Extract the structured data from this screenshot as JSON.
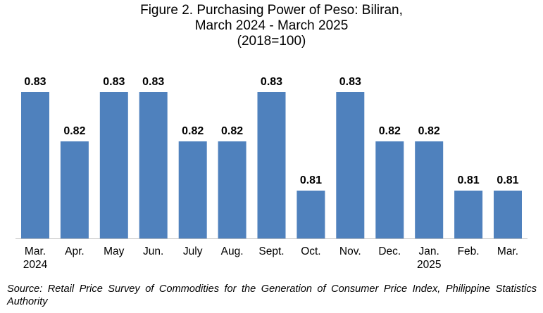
{
  "title_lines": [
    "Figure 2. Purchasing Power of Peso: Biliran,",
    "March 2024 - March 2025",
    "(2018=100)"
  ],
  "chart_data": {
    "type": "bar",
    "title": "Figure 2. Purchasing Power of Peso: Biliran, March 2024 - March 2025 (2018=100)",
    "categories": [
      [
        "Mar.",
        "2024"
      ],
      [
        "Apr."
      ],
      [
        "May"
      ],
      [
        "Jun."
      ],
      [
        "July"
      ],
      [
        "Aug."
      ],
      [
        "Sept."
      ],
      [
        "Oct."
      ],
      [
        "Nov."
      ],
      [
        "Dec."
      ],
      [
        "Jan.",
        "2025"
      ],
      [
        "Feb."
      ],
      [
        "Mar."
      ]
    ],
    "values": [
      0.83,
      0.82,
      0.83,
      0.83,
      0.82,
      0.82,
      0.83,
      0.81,
      0.83,
      0.82,
      0.82,
      0.81,
      0.81
    ],
    "bar_color": "#4F81BD",
    "data_labels": true,
    "grid": false
  },
  "source": "Source: Retail Price Survey of Commodities for the Generation of Consumer Price Index, Philippine Statistics Authority"
}
